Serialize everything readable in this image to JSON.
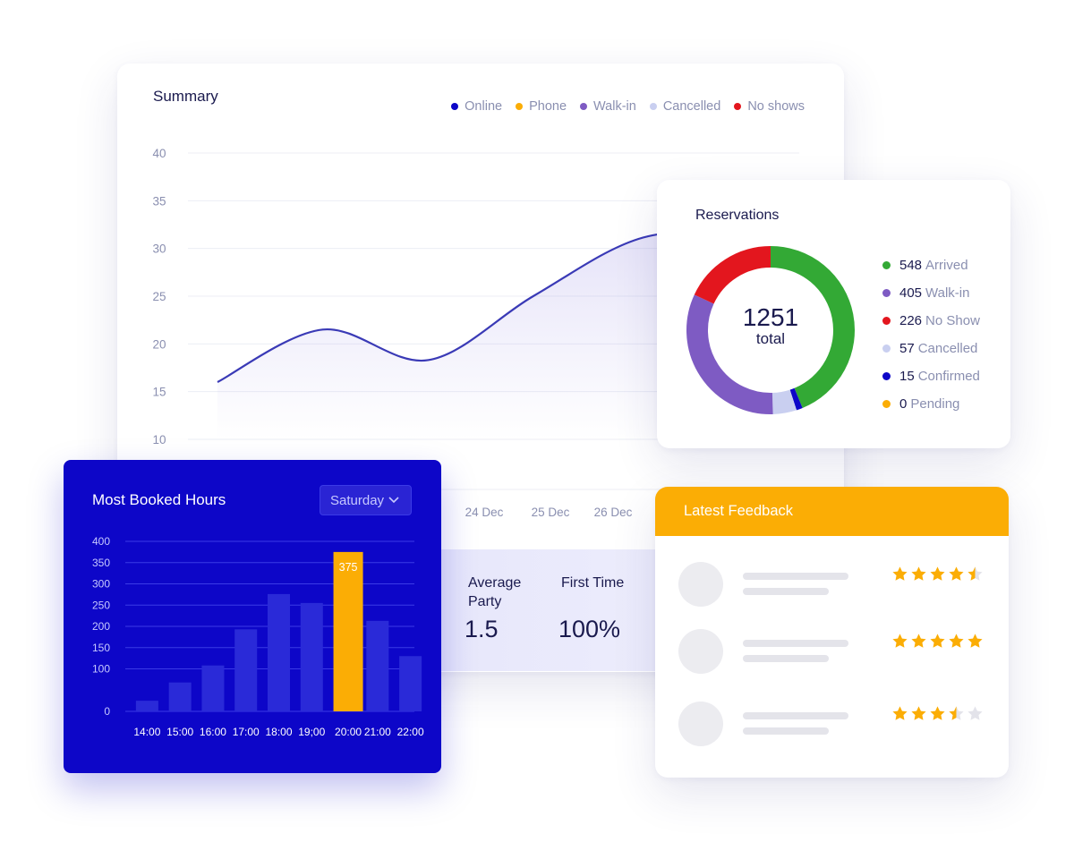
{
  "summary": {
    "title": "Summary",
    "legend": [
      {
        "label": "Online",
        "color": "#0d06c8"
      },
      {
        "label": "Phone",
        "color": "#fbad05"
      },
      {
        "label": "Walk-in",
        "color": "#7e5bc3"
      },
      {
        "label": "Cancelled",
        "color": "#c9cff0"
      },
      {
        "label": "No shows",
        "color": "#e3161e"
      }
    ],
    "y_ticks": [
      "40",
      "35",
      "30",
      "25",
      "20",
      "15",
      "10"
    ],
    "x_ticks": [
      "24 Dec",
      "25 Dec",
      "26 Dec"
    ],
    "line_color": "#3a3ab6",
    "stats": {
      "avg_party_label": "Average Party",
      "avg_party_value": "1.5",
      "first_time_label": "First Time",
      "first_time_value": "100%"
    }
  },
  "chart_data": [
    {
      "type": "line",
      "title": "Summary",
      "ylim": [
        10,
        40
      ],
      "grid": true,
      "legend_placement": "top-right",
      "x": [
        0,
        1,
        2,
        3,
        4,
        5
      ],
      "series": [
        {
          "values": [
            16.0,
            21.5,
            18.3,
            25.0,
            31.0,
            32.0
          ]
        }
      ]
    },
    {
      "type": "bar",
      "title": "Most Booked Hours",
      "categories": [
        "14:00",
        "15:00",
        "16:00",
        "17:00",
        "18:00",
        "19;00",
        "20:00",
        "21:00",
        "22:00"
      ],
      "values": [
        25,
        68,
        108,
        193,
        276,
        255,
        375,
        213,
        130
      ],
      "highlight_index": 6,
      "ylim": [
        0,
        400
      ],
      "y_ticks": [
        400,
        350,
        300,
        250,
        200,
        150,
        100,
        0
      ],
      "data_labels": {
        "6": "375"
      },
      "grid": true
    },
    {
      "type": "pie",
      "title": "Reservations",
      "categories": [
        "Arrived",
        "Confirmed",
        "Cancelled",
        "Walk-in",
        "No Show",
        "Pending"
      ],
      "values": [
        548,
        15,
        57,
        405,
        226,
        0
      ],
      "colors": [
        "#33a935",
        "#0d06c8",
        "#c9cff0",
        "#7e5bc3",
        "#e3161e",
        "#fbad05"
      ]
    }
  ],
  "reservations": {
    "title": "Reservations",
    "total": "1251",
    "total_label": "total",
    "items": [
      {
        "count": "548",
        "label": "Arrived",
        "color": "#33a935"
      },
      {
        "count": "405",
        "label": "Walk-in",
        "color": "#7e5bc3"
      },
      {
        "count": "226",
        "label": "No Show",
        "color": "#e3161e"
      },
      {
        "count": "57",
        "label": "Cancelled",
        "color": "#c9cff0"
      },
      {
        "count": "15",
        "label": "Confirmed",
        "color": "#0d06c8"
      },
      {
        "count": "0",
        "label": "Pending",
        "color": "#fbad05"
      }
    ]
  },
  "booked": {
    "title": "Most Booked Hours",
    "selected_day": "Saturday",
    "bar_color": "#2a2ad8",
    "highlight_color": "#fbad05",
    "highlight_label": "375"
  },
  "feedback": {
    "title": "Latest Feedback",
    "ratings": [
      4.5,
      5,
      3.5
    ],
    "star_color": "#fbad05",
    "star_empty_color": "#e3e3ea"
  }
}
